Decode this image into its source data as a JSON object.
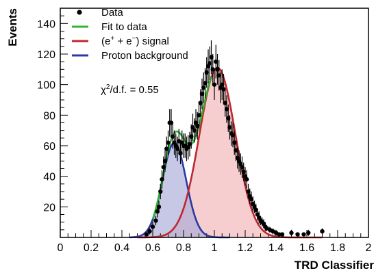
{
  "chart_data": {
    "type": "scatter",
    "xlabel": "TRD Classifier",
    "ylabel": "Events",
    "xlim": [
      0,
      2
    ],
    "ylim": [
      0,
      150
    ],
    "x_ticks": [
      "0",
      "0.2",
      "0.4",
      "0.6",
      "0.8",
      "1",
      "1.2",
      "1.4",
      "1.6",
      "1.8",
      "2"
    ],
    "y_ticks": [
      "20",
      "40",
      "60",
      "80",
      "100",
      "120",
      "140"
    ],
    "annotation": {
      "prefix": "χ",
      "sup": "2",
      "suffix": "/d.f. = 0.55"
    },
    "legend": {
      "placement": "top-left",
      "entries": [
        {
          "marker": "point",
          "label": "Data"
        },
        {
          "marker": "line",
          "color": "#2fb52f",
          "label": "Fit to data"
        },
        {
          "marker": "line",
          "color": "#c0262d",
          "label": {
            "a": "(e",
            "s1": "+",
            "b": " + e",
            "s2": "−",
            "c": ") signal"
          }
        },
        {
          "marker": "line",
          "color": "#2b3aa0",
          "label": "Proton background"
        }
      ]
    },
    "series": [
      {
        "name": "Data",
        "kind": "points",
        "color": "#000000",
        "points": [
          [
            0.56,
            2,
            1
          ],
          [
            0.58,
            4,
            2
          ],
          [
            0.6,
            7,
            3
          ],
          [
            0.62,
            11,
            3
          ],
          [
            0.63,
            17,
            4
          ],
          [
            0.64,
            20,
            4
          ],
          [
            0.65,
            30,
            5
          ],
          [
            0.66,
            38,
            6
          ],
          [
            0.67,
            46,
            7
          ],
          [
            0.68,
            50,
            7
          ],
          [
            0.69,
            58,
            8
          ],
          [
            0.7,
            62,
            8
          ],
          [
            0.71,
            75,
            9
          ],
          [
            0.72,
            75,
            9
          ],
          [
            0.73,
            66,
            8
          ],
          [
            0.74,
            62,
            8
          ],
          [
            0.75,
            60,
            8
          ],
          [
            0.76,
            58,
            8
          ],
          [
            0.77,
            63,
            8
          ],
          [
            0.78,
            55,
            7
          ],
          [
            0.79,
            62,
            8
          ],
          [
            0.8,
            60,
            8
          ],
          [
            0.81,
            60,
            8
          ],
          [
            0.82,
            58,
            8
          ],
          [
            0.83,
            59,
            8
          ],
          [
            0.84,
            61,
            8
          ],
          [
            0.85,
            66,
            8
          ],
          [
            0.86,
            72,
            9
          ],
          [
            0.87,
            70,
            8
          ],
          [
            0.88,
            75,
            9
          ],
          [
            0.89,
            73,
            9
          ],
          [
            0.9,
            80,
            9
          ],
          [
            0.91,
            88,
            9
          ],
          [
            0.92,
            94,
            10
          ],
          [
            0.93,
            98,
            10
          ],
          [
            0.94,
            101,
            10
          ],
          [
            0.95,
            108,
            10
          ],
          [
            0.96,
            112,
            11
          ],
          [
            0.97,
            114,
            11
          ],
          [
            0.98,
            118,
            11
          ],
          [
            0.99,
            110,
            10
          ],
          [
            1.0,
            100,
            10
          ],
          [
            1.01,
            115,
            11
          ],
          [
            1.02,
            110,
            10
          ],
          [
            1.03,
            106,
            10
          ],
          [
            1.04,
            98,
            10
          ],
          [
            1.05,
            100,
            10
          ],
          [
            1.06,
            97,
            10
          ],
          [
            1.07,
            88,
            9
          ],
          [
            1.08,
            84,
            9
          ],
          [
            1.09,
            78,
            9
          ],
          [
            1.1,
            72,
            8
          ],
          [
            1.11,
            68,
            8
          ],
          [
            1.12,
            67,
            8
          ],
          [
            1.13,
            62,
            8
          ],
          [
            1.14,
            57,
            7
          ],
          [
            1.15,
            52,
            7
          ],
          [
            1.16,
            50,
            7
          ],
          [
            1.17,
            48,
            7
          ],
          [
            1.18,
            46,
            7
          ],
          [
            1.19,
            43,
            6
          ],
          [
            1.2,
            40,
            6
          ],
          [
            1.21,
            38,
            6
          ],
          [
            1.22,
            30,
            5
          ],
          [
            1.23,
            27,
            5
          ],
          [
            1.24,
            25,
            5
          ],
          [
            1.25,
            22,
            5
          ],
          [
            1.26,
            20,
            4
          ],
          [
            1.27,
            18,
            4
          ],
          [
            1.28,
            15,
            4
          ],
          [
            1.29,
            13,
            4
          ],
          [
            1.3,
            11,
            3
          ],
          [
            1.31,
            10,
            3
          ],
          [
            1.32,
            9,
            3
          ],
          [
            1.33,
            7,
            3
          ],
          [
            1.34,
            6,
            2
          ],
          [
            1.36,
            5,
            2
          ],
          [
            1.38,
            4,
            2
          ],
          [
            1.4,
            3,
            2
          ],
          [
            1.42,
            2,
            1
          ],
          [
            1.44,
            2,
            1
          ],
          [
            1.5,
            3,
            2
          ],
          [
            1.54,
            2,
            1
          ],
          [
            1.58,
            2,
            1
          ],
          [
            1.61,
            3,
            2
          ],
          [
            1.7,
            4,
            2
          ]
        ]
      },
      {
        "name": "Fit to data",
        "kind": "gauss-sum",
        "color": "#2fb52f",
        "components": [
          "(e+ + e−) signal",
          "Proton background"
        ]
      },
      {
        "name": "(e+ + e−) signal",
        "kind": "gauss",
        "color": "#c0262d",
        "fill": "#f3b3b6",
        "amplitude": 111,
        "mean": 1.02,
        "sigma": 0.117,
        "range": [
          0.5,
          1.7
        ]
      },
      {
        "name": "Proton background",
        "kind": "gauss",
        "color": "#2b3aa0",
        "fill": "#a7abd9",
        "amplitude": 62,
        "mean": 0.74,
        "sigma": 0.077,
        "range": [
          0.45,
          1.1
        ]
      }
    ]
  }
}
